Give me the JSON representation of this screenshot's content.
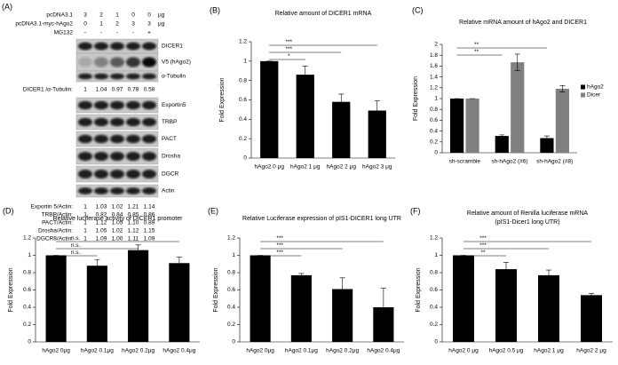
{
  "blot": {
    "label": "(A)",
    "conditions": [
      {
        "name": "pcDNA3.1",
        "values": [
          "3",
          "2",
          "1",
          "0",
          "0"
        ],
        "unit": "µg"
      },
      {
        "name": "pcDNA3.1-myc-hAgo2",
        "values": [
          "0",
          "1",
          "2",
          "3",
          "3"
        ],
        "unit": "µg"
      },
      {
        "name": "MG132",
        "values": [
          "-",
          "-",
          "-",
          "-",
          "+"
        ]
      }
    ],
    "bands1": [
      "DICER1",
      "V5 (hAgo2)",
      "α-Tubulin"
    ],
    "ratio1": {
      "name": "DICER1 /α-Tubulin:",
      "values": [
        "1",
        "1.04",
        "0.97",
        "0.78",
        "0.58"
      ]
    },
    "bands2": [
      "Exportin5",
      "TRBP",
      "PACT",
      "Drosha",
      "DGCR",
      "Actin"
    ],
    "ratios2": [
      {
        "name": "Exportin 5/Actin:",
        "values": [
          "1",
          "1.03",
          "1.02",
          "1.21",
          "1.14"
        ]
      },
      {
        "name": "TRBP/Actin:",
        "values": [
          "1",
          "0.82",
          "0.84",
          "0.85",
          "0.86"
        ]
      },
      {
        "name": "PACT/Actin:",
        "values": [
          "1",
          "1.12",
          "1.05",
          "1.10",
          "0.89"
        ]
      },
      {
        "name": "Drosha/Actin:",
        "values": [
          "1",
          "1.05",
          "1.02",
          "1.12",
          "1.15"
        ]
      },
      {
        "name": "DGCR8/Actin:",
        "values": [
          "1",
          "1.09",
          "1.00",
          "1.11",
          "1.09"
        ]
      }
    ]
  },
  "chart_data": [
    {
      "type": "bar",
      "label": "(B)",
      "title": "Relative amount of DICER1 mRNA",
      "ylabel": "Fold Expression",
      "categories": [
        "hAgo2 0 μg",
        "hAgo2 1 μg",
        "hAgo2 2 μg",
        "hAgo2 3 μg"
      ],
      "values": [
        1,
        0.86,
        0.58,
        0.49
      ],
      "errors": [
        0,
        0.09,
        0.08,
        0.1
      ],
      "color": "#000000",
      "ylim": [
        0,
        1.2
      ],
      "yticks": [
        0,
        0.2,
        0.4,
        0.6,
        0.8,
        1,
        1.2
      ],
      "annotations": [
        "*",
        "***",
        "***"
      ]
    },
    {
      "type": "bar",
      "label": "(C)",
      "title": "Relative mRNA amount of hAgo2 and DICER1",
      "ylabel": "Fold Expression",
      "categories": [
        "sh-scramble",
        "sh-hAgo2 (#6)",
        "sh-hAgo2 (#8)"
      ],
      "series": [
        {
          "name": "hAgo2",
          "color": "#000000",
          "values": [
            1,
            0.31,
            0.27
          ],
          "errors": [
            0,
            0.02,
            0.04
          ]
        },
        {
          "name": "Dicer",
          "color": "#808080",
          "values": [
            1,
            1.67,
            1.18
          ],
          "errors": [
            0,
            0.15,
            0.06
          ]
        }
      ],
      "ylim": [
        0,
        2
      ],
      "yticks": [
        0,
        0.2,
        0.4,
        0.6,
        0.8,
        1,
        1.2,
        1.4,
        1.6,
        1.8,
        2
      ],
      "annotations": [
        "**",
        "**"
      ]
    },
    {
      "type": "bar",
      "label": "(D)",
      "title": "Relative luciferase activity of DICER1 promoter",
      "ylabel": "Fold Expression",
      "categories": [
        "hAgo2 0μg",
        "hAgo2 0.1μg",
        "hAgo2 0.2μg",
        "hAgo2 0.4μg"
      ],
      "values": [
        1,
        0.88,
        1.06,
        0.91
      ],
      "errors": [
        0,
        0.07,
        0.06,
        0.07
      ],
      "color": "#000000",
      "ylim": [
        0,
        1.2
      ],
      "yticks": [
        0,
        0.2,
        0.4,
        0.6,
        0.8,
        1,
        1.2
      ],
      "annotations": [
        "n.s.",
        "n.s.",
        "n.s."
      ]
    },
    {
      "type": "bar",
      "label": "(E)",
      "title": "Relative Luciferase expression of pIS1-DICER1 long UTR",
      "ylabel": "Fold Expression",
      "categories": [
        "hAgo2 0μg",
        "hAgo2 0.1μg",
        "hAgo2 0.2μg",
        "hAgo2 0.4μg"
      ],
      "values": [
        1,
        0.77,
        0.61,
        0.4
      ],
      "errors": [
        0,
        0.02,
        0.13,
        0.22
      ],
      "color": "#000000",
      "ylim": [
        0,
        1.2
      ],
      "yticks": [
        0,
        0.2,
        0.4,
        0.6,
        0.8,
        1,
        1.2
      ],
      "annotations": [
        "***",
        "***",
        "***"
      ]
    },
    {
      "type": "bar",
      "label": "(F)",
      "title": "Relative amount of Renilla luciferase mRNA",
      "subtitle": "(pIS1-Dicer1 long UTR)",
      "ylabel": "Fold Expression",
      "categories": [
        "hAgo2 0 μg",
        "hAgo2 0.5 μg",
        "hAgo2 1 μg",
        "hAgo2 2 μg"
      ],
      "values": [
        1,
        0.84,
        0.77,
        0.54
      ],
      "errors": [
        0,
        0.08,
        0.06,
        0.02
      ],
      "color": "#000000",
      "ylim": [
        0,
        1.2
      ],
      "yticks": [
        0,
        0.2,
        0.4,
        0.6,
        0.8,
        1,
        1.2
      ],
      "annotations": [
        "**",
        "***",
        "***"
      ]
    }
  ]
}
